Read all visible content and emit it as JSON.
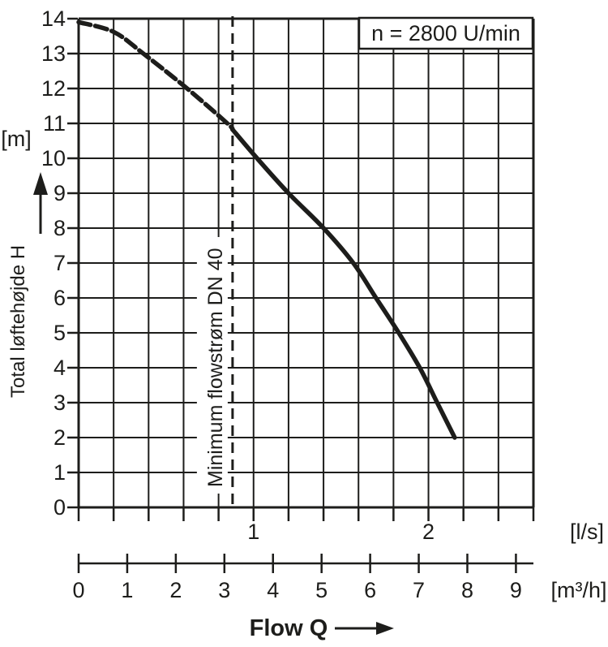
{
  "colors": {
    "ink": "#1d1d1b",
    "background": "#ffffff",
    "curve": "#1d1d1b"
  },
  "chart_data": {
    "type": "line",
    "annotation": "n = 2800 U/min",
    "xlabel": "Flow Q",
    "y_axis": {
      "unit": "[m]",
      "label": "Total løftehøjde H",
      "min": 0,
      "max": 14,
      "ticks": [
        0,
        1,
        2,
        3,
        4,
        5,
        6,
        7,
        8,
        9,
        10,
        11,
        12,
        13,
        14
      ],
      "grid": true
    },
    "x_axis_ls": {
      "unit": "[l/s]",
      "min": 0,
      "max": 2.6,
      "grid_step": 0.2,
      "labeled_ticks": [
        1,
        2
      ]
    },
    "x_axis_m3h": {
      "unit": "[m³/h]",
      "ticks": [
        0,
        1,
        2,
        3,
        4,
        5,
        6,
        7,
        8,
        9
      ],
      "m3h_per_ls": 3.6
    },
    "min_flow_line": {
      "q_ls": 0.88,
      "style": "dashed",
      "label": "Minimum flowstrøm DN 40"
    },
    "series": [
      {
        "name": "pump head curve H(Q)",
        "dashed_below_q_ls": 0.88,
        "points_q_ls_h_m": [
          [
            0,
            13.9
          ],
          [
            0.2,
            13.62
          ],
          [
            0.37,
            13
          ],
          [
            0.62,
            12
          ],
          [
            0.85,
            11
          ],
          [
            1.02,
            10
          ],
          [
            1.2,
            9
          ],
          [
            1.4,
            8
          ],
          [
            1.57,
            7
          ],
          [
            1.7,
            6
          ],
          [
            1.83,
            5
          ],
          [
            1.95,
            4
          ],
          [
            2.05,
            3
          ],
          [
            2.15,
            2
          ]
        ]
      }
    ],
    "legend": null,
    "grid_on": true
  }
}
